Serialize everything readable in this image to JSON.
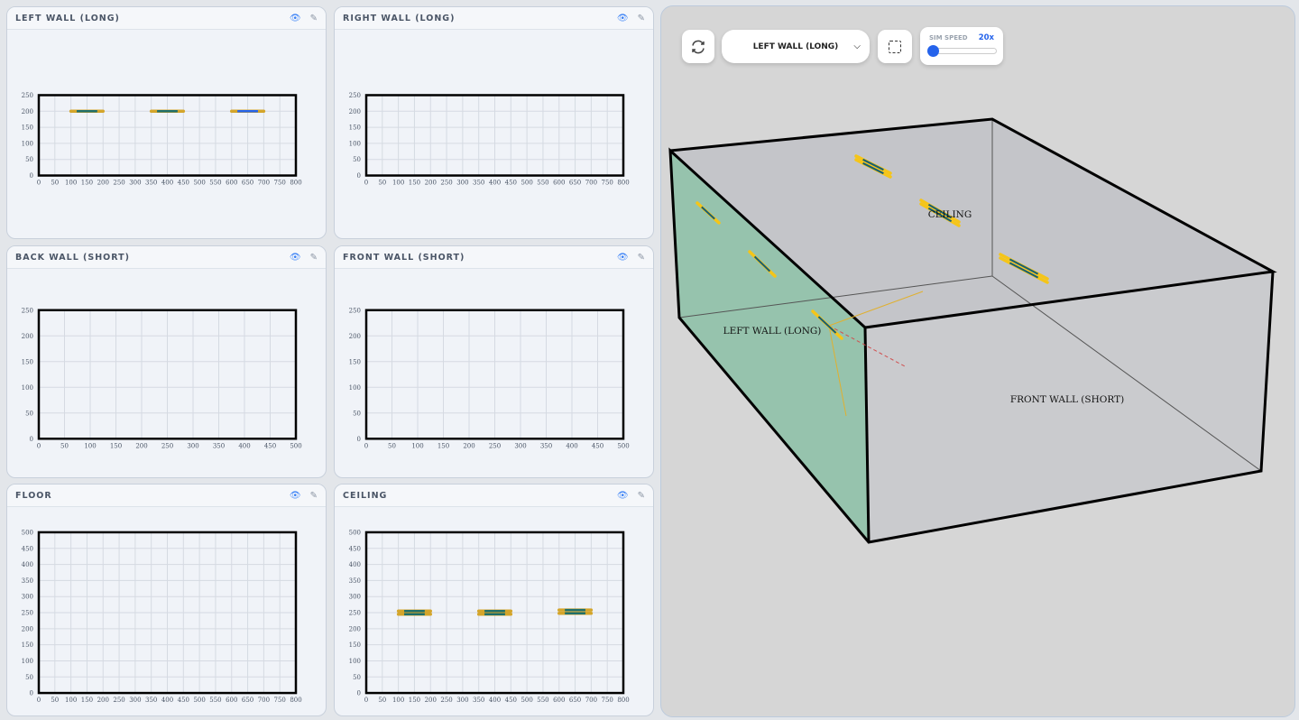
{
  "panels": [
    {
      "title": "LEFT WALL (LONG)",
      "xmax": 800,
      "ymax": 250,
      "xticks": [
        0,
        50,
        100,
        150,
        200,
        250,
        300,
        350,
        400,
        450,
        500,
        550,
        600,
        650,
        700,
        750,
        800
      ],
      "yticks": [
        0,
        50,
        100,
        150,
        200,
        250
      ],
      "fixtures": [
        {
          "x1": 100,
          "x2": 200,
          "y": 200,
          "color": "#1f6f6a"
        },
        {
          "x1": 350,
          "x2": 450,
          "y": 200,
          "color": "#1f6f6a"
        },
        {
          "x1": 600,
          "x2": 700,
          "y": 200,
          "color": "#2563eb"
        }
      ],
      "double": false
    },
    {
      "title": "RIGHT WALL (LONG)",
      "xmax": 800,
      "ymax": 250,
      "xticks": [
        0,
        50,
        100,
        150,
        200,
        250,
        300,
        350,
        400,
        450,
        500,
        550,
        600,
        650,
        700,
        750,
        800
      ],
      "yticks": [
        0,
        50,
        100,
        150,
        200,
        250
      ],
      "fixtures": []
    },
    {
      "title": "BACK WALL (SHORT)",
      "xmax": 500,
      "ymax": 250,
      "xticks": [
        0,
        50,
        100,
        150,
        200,
        250,
        300,
        350,
        400,
        450,
        500
      ],
      "yticks": [
        0,
        50,
        100,
        150,
        200,
        250
      ],
      "fixtures": []
    },
    {
      "title": "FRONT WALL (SHORT)",
      "xmax": 500,
      "ymax": 250,
      "xticks": [
        0,
        50,
        100,
        150,
        200,
        250,
        300,
        350,
        400,
        450,
        500
      ],
      "yticks": [
        0,
        50,
        100,
        150,
        200,
        250
      ],
      "fixtures": []
    },
    {
      "title": "FLOOR",
      "xmax": 800,
      "ymax": 500,
      "xticks": [
        0,
        50,
        100,
        150,
        200,
        250,
        300,
        350,
        400,
        450,
        500,
        550,
        600,
        650,
        700,
        750,
        800
      ],
      "yticks": [
        0,
        50,
        100,
        150,
        200,
        250,
        300,
        350,
        400,
        450,
        500
      ],
      "fixtures": []
    },
    {
      "title": "CEILING",
      "xmax": 800,
      "ymax": 500,
      "xticks": [
        0,
        50,
        100,
        150,
        200,
        250,
        300,
        350,
        400,
        450,
        500,
        550,
        600,
        650,
        700,
        750,
        800
      ],
      "yticks": [
        0,
        50,
        100,
        150,
        200,
        250,
        300,
        350,
        400,
        450,
        500
      ],
      "fixtures": [
        {
          "x1": 100,
          "x2": 200,
          "y": 250,
          "color": "#1f6f6a"
        },
        {
          "x1": 350,
          "x2": 450,
          "y": 250,
          "color": "#1f6f6a"
        },
        {
          "x1": 600,
          "x2": 700,
          "y": 253,
          "color": "#1f6f6a"
        }
      ],
      "double": true
    }
  ],
  "icons": {
    "view": "eye-icon",
    "edit": "edit-icon"
  },
  "toolbar": {
    "refresh": "refresh-icon",
    "selected_view": "LEFT WALL (LONG)",
    "select_icon": "selection-icon",
    "speed_label": "SIM SPEED",
    "speed_value": "20x",
    "speed_fraction": 0.05
  },
  "scene": {
    "labels": {
      "ceiling": "CEILING",
      "left": "LEFT WALL (LONG)",
      "front": "FRONT WALL (SHORT)"
    },
    "left_wall_color": "#8fc1a9",
    "wall_color": "#c7c8cc",
    "fixture_color": "#f5c518"
  }
}
